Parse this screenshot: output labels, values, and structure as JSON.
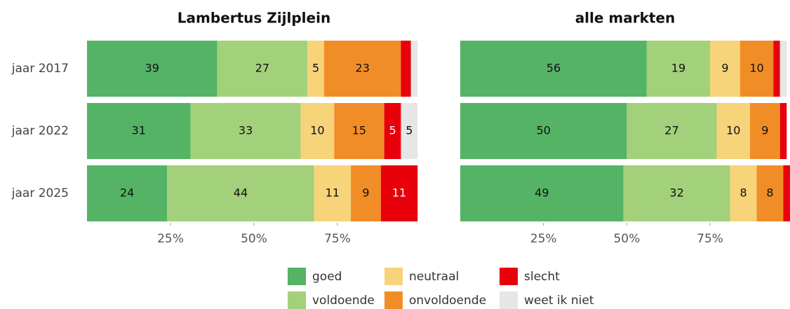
{
  "chart_data": [
    {
      "type": "bar",
      "title": "Lambertus Zijlplein",
      "categories": [
        "jaar 2017",
        "jaar 2022",
        "jaar 2025"
      ],
      "series": [
        {
          "name": "goed",
          "color": "#55b365",
          "values": [
            39,
            31,
            24
          ]
        },
        {
          "name": "voldoende",
          "color": "#a3d07a",
          "values": [
            27,
            33,
            44
          ]
        },
        {
          "name": "neutraal",
          "color": "#f7d37a",
          "values": [
            5,
            10,
            11
          ]
        },
        {
          "name": "onvoldoende",
          "color": "#f18d27",
          "values": [
            23,
            15,
            9
          ]
        },
        {
          "name": "slecht",
          "color": "#e8000b",
          "values": [
            3,
            5,
            11
          ]
        },
        {
          "name": "weet ik niet",
          "color": "#e6e6e6",
          "values": [
            2,
            5,
            0
          ]
        }
      ],
      "xlim": [
        0,
        100
      ],
      "xticks": [
        {
          "value": 25,
          "label": "25%"
        },
        {
          "value": 50,
          "label": "50%"
        },
        {
          "value": 75,
          "label": "75%"
        }
      ]
    },
    {
      "type": "bar",
      "title": "alle markten",
      "categories": [
        "jaar 2017",
        "jaar 2022",
        "jaar 2025"
      ],
      "series": [
        {
          "name": "goed",
          "color": "#55b365",
          "values": [
            56,
            50,
            49
          ]
        },
        {
          "name": "voldoende",
          "color": "#a3d07a",
          "values": [
            19,
            27,
            32
          ]
        },
        {
          "name": "neutraal",
          "color": "#f7d37a",
          "values": [
            9,
            10,
            8
          ]
        },
        {
          "name": "onvoldoende",
          "color": "#f18d27",
          "values": [
            10,
            9,
            8
          ]
        },
        {
          "name": "slecht",
          "color": "#e8000b",
          "values": [
            2,
            2,
            2
          ]
        },
        {
          "name": "weet ik niet",
          "color": "#e6e6e6",
          "values": [
            2,
            0,
            0
          ]
        }
      ],
      "xlim": [
        0,
        99
      ],
      "xticks": [
        {
          "value": 25,
          "label": "25%"
        },
        {
          "value": 50,
          "label": "50%"
        },
        {
          "value": 75,
          "label": "75%"
        }
      ]
    }
  ]
}
